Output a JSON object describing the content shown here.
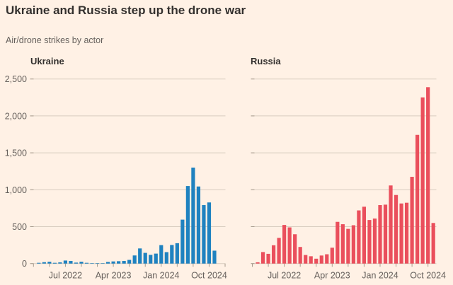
{
  "header": {
    "title": "Ukraine and Russia step up the drone war",
    "subtitle": "Air/drone strikes by actor"
  },
  "colors": {
    "background": "#FFF1E5",
    "title_text": "#33302E",
    "muted_text": "#66605C",
    "gridline": "#D8CCBF",
    "tick": "#A79B8D",
    "ukraine_bar": "#1F82C0",
    "russia_bar": "#EA4F5C"
  },
  "axis": {
    "ylim": [
      0,
      2500
    ],
    "y_ticks": [
      0,
      500,
      1000,
      1500,
      2000,
      2500
    ],
    "y_tick_labels": [
      "0",
      "500",
      "1,000",
      "1,500",
      "2,000",
      "2,500"
    ],
    "x_tick_labels": [
      "Jul 2022",
      "Apr 2023",
      "Jan 2024",
      "Oct 2024"
    ],
    "grid": true
  },
  "chart_data": [
    {
      "type": "bar",
      "title": "Ukraine",
      "color": "#1F82C0",
      "xlabel": "",
      "ylabel": "",
      "ylim": [
        0,
        2500
      ],
      "months": [
        "Feb 2022",
        "Mar 2022",
        "Apr 2022",
        "May 2022",
        "Jun 2022",
        "Jul 2022",
        "Aug 2022",
        "Sep 2022",
        "Oct 2022",
        "Nov 2022",
        "Dec 2022",
        "Jan 2023",
        "Feb 2023",
        "Mar 2023",
        "Apr 2023",
        "May 2023",
        "Jun 2023",
        "Jul 2023",
        "Aug 2023",
        "Sep 2023",
        "Oct 2023",
        "Nov 2023",
        "Dec 2023",
        "Jan 2024",
        "Feb 2024",
        "Mar 2024",
        "Apr 2024",
        "May 2024",
        "Jun 2024",
        "Jul 2024",
        "Aug 2024",
        "Sep 2024",
        "Oct 2024",
        "Nov 2024"
      ],
      "values": [
        10,
        19,
        25,
        10,
        16,
        41,
        35,
        13,
        25,
        10,
        6,
        6,
        3,
        22,
        29,
        32,
        35,
        50,
        110,
        205,
        145,
        118,
        135,
        250,
        155,
        252,
        276,
        595,
        1050,
        1300,
        1044,
        792,
        828,
        175
      ]
    },
    {
      "type": "bar",
      "title": "Russia",
      "color": "#EA4F5C",
      "xlabel": "",
      "ylabel": "",
      "ylim": [
        0,
        2500
      ],
      "months": [
        "Feb 2022",
        "Mar 2022",
        "Apr 2022",
        "May 2022",
        "Jun 2022",
        "Jul 2022",
        "Aug 2022",
        "Sep 2022",
        "Oct 2022",
        "Nov 2022",
        "Dec 2022",
        "Jan 2023",
        "Feb 2023",
        "Mar 2023",
        "Apr 2023",
        "May 2023",
        "Jun 2023",
        "Jul 2023",
        "Aug 2023",
        "Sep 2023",
        "Oct 2023",
        "Nov 2023",
        "Dec 2023",
        "Jan 2024",
        "Feb 2024",
        "Mar 2024",
        "Apr 2024",
        "May 2024",
        "Jun 2024",
        "Jul 2024",
        "Aug 2024",
        "Sep 2024",
        "Oct 2024",
        "Nov 2024"
      ],
      "values": [
        17,
        156,
        132,
        248,
        348,
        523,
        490,
        397,
        225,
        116,
        99,
        66,
        109,
        126,
        215,
        565,
        533,
        470,
        519,
        720,
        770,
        590,
        610,
        792,
        798,
        1058,
        929,
        814,
        824,
        1175,
        1743,
        2251,
        2389,
        550
      ]
    }
  ]
}
